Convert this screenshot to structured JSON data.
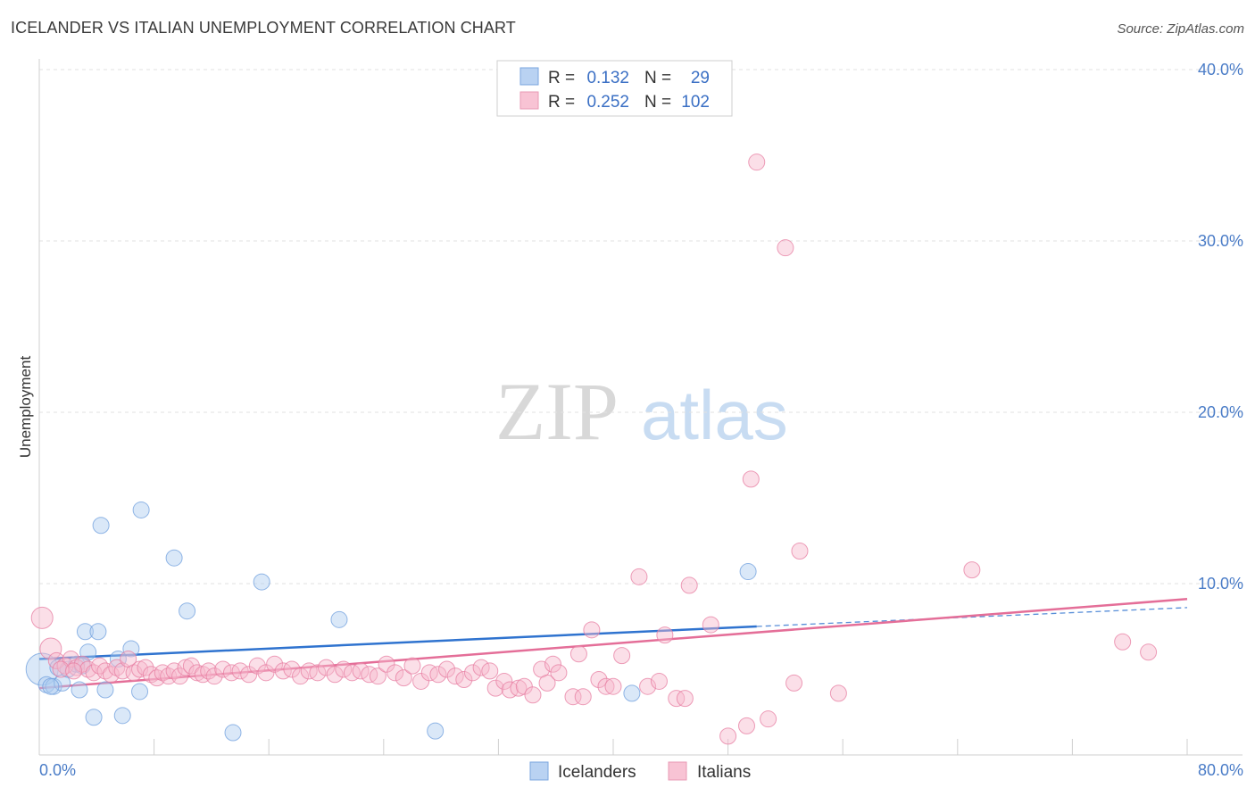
{
  "title": "ICELANDER VS ITALIAN UNEMPLOYMENT CORRELATION CHART",
  "source": "Source: ZipAtlas.com",
  "watermark": {
    "zip": "ZIP",
    "atlas": "atlas"
  },
  "chart_data": {
    "type": "scatter",
    "ylabel": "Unemployment",
    "xlim": [
      0,
      80
    ],
    "ylim": [
      0,
      40
    ],
    "x_tick_labels": [
      "0.0%",
      "80.0%"
    ],
    "y_ticks": [
      10,
      20,
      30,
      40
    ],
    "y_tick_labels": [
      "10.0%",
      "20.0%",
      "30.0%",
      "40.0%"
    ],
    "legend": {
      "r_label": "R =",
      "n_label": "N =",
      "entries": [
        {
          "r": "0.132",
          "n": "29"
        },
        {
          "r": "0.252",
          "n": "102"
        }
      ]
    },
    "series": [
      {
        "name": "Icelanders",
        "color": "#6f9fde",
        "fill": "#aecbf0",
        "trend": {
          "x0": 0,
          "y0": 5.6,
          "x1": 50,
          "y1": 7.5,
          "dash_to": 80,
          "dash_y": 8.6
        },
        "points": [
          [
            0.2,
            5.0,
            18
          ],
          [
            0.5,
            4.1,
            9
          ],
          [
            1.0,
            4.0,
            9
          ],
          [
            1.3,
            5.1,
            9
          ],
          [
            1.6,
            4.2,
            9
          ],
          [
            2.0,
            5.0,
            9
          ],
          [
            2.6,
            5.3,
            9
          ],
          [
            2.8,
            3.8,
            9
          ],
          [
            3.2,
            7.2,
            9
          ],
          [
            3.4,
            6.0,
            9
          ],
          [
            3.8,
            2.2,
            9
          ],
          [
            4.1,
            7.2,
            9
          ],
          [
            4.3,
            13.4,
            9
          ],
          [
            4.6,
            3.8,
            9
          ],
          [
            5.5,
            5.6,
            9
          ],
          [
            5.8,
            2.3,
            9
          ],
          [
            6.4,
            6.2,
            9
          ],
          [
            7.0,
            3.7,
            9
          ],
          [
            7.1,
            14.3,
            9
          ],
          [
            9.4,
            11.5,
            9
          ],
          [
            10.3,
            8.4,
            9
          ],
          [
            13.5,
            1.3,
            9
          ],
          [
            15.5,
            10.1,
            9
          ],
          [
            20.9,
            7.9,
            9
          ],
          [
            27.6,
            1.4,
            9
          ],
          [
            41.3,
            3.6,
            9
          ],
          [
            49.4,
            10.7,
            9
          ],
          [
            3.0,
            5.2,
            9
          ],
          [
            0.8,
            4.0,
            9
          ]
        ]
      },
      {
        "name": "Italians",
        "color": "#e77ea2",
        "fill": "#f6b7cc",
        "trend": {
          "x0": 0,
          "y0": 3.9,
          "x1": 80,
          "y1": 9.1
        },
        "points": [
          [
            0.2,
            8.0,
            12
          ],
          [
            0.8,
            6.2,
            12
          ],
          [
            1.2,
            5.5,
            9
          ],
          [
            1.8,
            5.2,
            9
          ],
          [
            2.2,
            5.6,
            9
          ],
          [
            2.6,
            5.1,
            9
          ],
          [
            3.0,
            5.3,
            9
          ],
          [
            3.4,
            5.0,
            9
          ],
          [
            3.8,
            4.8,
            9
          ],
          [
            4.2,
            5.2,
            9
          ],
          [
            4.6,
            4.9,
            9
          ],
          [
            5.0,
            4.7,
            9
          ],
          [
            5.4,
            5.1,
            9
          ],
          [
            5.8,
            4.9,
            9
          ],
          [
            6.2,
            5.6,
            9
          ],
          [
            6.6,
            4.8,
            9
          ],
          [
            7.0,
            5.0,
            9
          ],
          [
            7.4,
            5.1,
            9
          ],
          [
            7.8,
            4.7,
            9
          ],
          [
            8.2,
            4.5,
            9
          ],
          [
            8.6,
            4.8,
            9
          ],
          [
            9.0,
            4.6,
            9
          ],
          [
            9.4,
            4.9,
            9
          ],
          [
            9.8,
            4.6,
            9
          ],
          [
            10.2,
            5.1,
            9
          ],
          [
            10.6,
            5.2,
            9
          ],
          [
            11.0,
            4.8,
            9
          ],
          [
            11.4,
            4.7,
            9
          ],
          [
            11.8,
            4.9,
            9
          ],
          [
            12.2,
            4.6,
            9
          ],
          [
            12.8,
            5.0,
            9
          ],
          [
            13.4,
            4.8,
            9
          ],
          [
            14.0,
            4.9,
            9
          ],
          [
            14.6,
            4.7,
            9
          ],
          [
            15.2,
            5.2,
            9
          ],
          [
            15.8,
            4.8,
            9
          ],
          [
            16.4,
            5.3,
            9
          ],
          [
            17.0,
            4.9,
            9
          ],
          [
            17.6,
            5.0,
            9
          ],
          [
            18.2,
            4.6,
            9
          ],
          [
            18.8,
            4.9,
            9
          ],
          [
            19.4,
            4.8,
            9
          ],
          [
            20.0,
            5.1,
            9
          ],
          [
            20.6,
            4.7,
            9
          ],
          [
            21.2,
            5.0,
            9
          ],
          [
            21.8,
            4.8,
            9
          ],
          [
            22.4,
            4.9,
            9
          ],
          [
            23.0,
            4.7,
            9
          ],
          [
            23.6,
            4.6,
            9
          ],
          [
            24.2,
            5.3,
            9
          ],
          [
            24.8,
            4.8,
            9
          ],
          [
            25.4,
            4.5,
            9
          ],
          [
            26.0,
            5.2,
            9
          ],
          [
            26.6,
            4.3,
            9
          ],
          [
            27.2,
            4.8,
            9
          ],
          [
            27.8,
            4.7,
            9
          ],
          [
            28.4,
            5.0,
            9
          ],
          [
            29.0,
            4.6,
            9
          ],
          [
            29.6,
            4.4,
            9
          ],
          [
            30.2,
            4.8,
            9
          ],
          [
            30.8,
            5.1,
            9
          ],
          [
            31.4,
            4.9,
            9
          ],
          [
            31.8,
            3.9,
            9
          ],
          [
            32.4,
            4.3,
            9
          ],
          [
            32.8,
            3.8,
            9
          ],
          [
            33.4,
            3.9,
            9
          ],
          [
            33.8,
            4.0,
            9
          ],
          [
            34.4,
            3.5,
            9
          ],
          [
            35.0,
            5.0,
            9
          ],
          [
            35.4,
            4.2,
            9
          ],
          [
            35.8,
            5.3,
            9
          ],
          [
            36.2,
            4.8,
            9
          ],
          [
            37.2,
            3.4,
            9
          ],
          [
            37.6,
            5.9,
            9
          ],
          [
            37.9,
            3.4,
            9
          ],
          [
            38.5,
            7.3,
            9
          ],
          [
            39.0,
            4.4,
            9
          ],
          [
            39.5,
            4.0,
            9
          ],
          [
            40.0,
            4.0,
            9
          ],
          [
            40.6,
            5.8,
            9
          ],
          [
            41.8,
            10.4,
            9
          ],
          [
            42.4,
            4.0,
            9
          ],
          [
            43.2,
            4.3,
            9
          ],
          [
            43.6,
            7.0,
            9
          ],
          [
            44.4,
            3.3,
            9
          ],
          [
            45.0,
            3.3,
            9
          ],
          [
            45.3,
            9.9,
            9
          ],
          [
            46.8,
            7.6,
            9
          ],
          [
            48.0,
            1.1,
            9
          ],
          [
            49.3,
            1.7,
            9
          ],
          [
            49.6,
            16.1,
            9
          ],
          [
            50.0,
            34.6,
            9
          ],
          [
            50.8,
            2.1,
            9
          ],
          [
            52.0,
            29.6,
            9
          ],
          [
            52.6,
            4.2,
            9
          ],
          [
            53.0,
            11.9,
            9
          ],
          [
            55.7,
            3.6,
            9
          ],
          [
            65.0,
            10.8,
            9
          ],
          [
            75.5,
            6.6,
            9
          ],
          [
            77.3,
            6.0,
            9
          ],
          [
            1.5,
            5.0,
            9
          ],
          [
            2.4,
            4.9,
            9
          ]
        ]
      }
    ]
  }
}
